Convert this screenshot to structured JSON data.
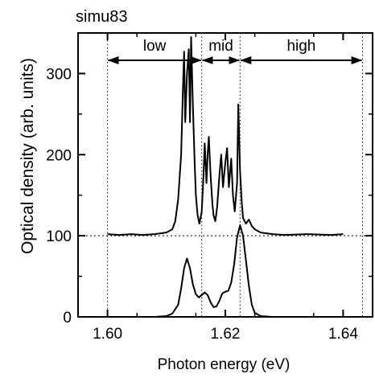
{
  "chart_data": {
    "type": "line",
    "title": "simu83",
    "xlabel": "Photon energy (eV)",
    "ylabel": "Optical density  (arb. units)",
    "xlim": [
      1.595,
      1.645
    ],
    "ylim": [
      0,
      350
    ],
    "x_ticks": [
      1.6,
      1.62,
      1.64
    ],
    "x_tick_labels": [
      "1.60",
      "1.62",
      "1.64"
    ],
    "y_ticks": [
      0,
      100,
      200,
      300
    ],
    "y_tick_labels": [
      "0",
      "100",
      "200",
      "300"
    ],
    "grid": false,
    "region_boundaries_ev": [
      1.6,
      1.616,
      1.6225,
      1.6433
    ],
    "baseline_reference_y": 100,
    "regions": [
      {
        "label": "low",
        "from": 1.6,
        "to": 1.616
      },
      {
        "label": "mid",
        "from": 1.616,
        "to": 1.6225
      },
      {
        "label": "high",
        "from": 1.6225,
        "to": 1.6433
      }
    ],
    "series": [
      {
        "x": [
          1.6,
          1.602,
          1.604,
          1.606,
          1.608,
          1.609,
          1.61,
          1.611,
          1.6115,
          1.612,
          1.6125,
          1.6128,
          1.613,
          1.6132,
          1.6135,
          1.6138,
          1.614,
          1.6142,
          1.6145,
          1.6148,
          1.615,
          1.6153,
          1.6156,
          1.616,
          1.6163,
          1.6165,
          1.6168,
          1.617,
          1.6172,
          1.6175,
          1.6178,
          1.618,
          1.6183,
          1.6186,
          1.619,
          1.6193,
          1.6196,
          1.62,
          1.6203,
          1.6206,
          1.621,
          1.6213,
          1.6216,
          1.622,
          1.6222,
          1.6225,
          1.6228,
          1.623,
          1.6235,
          1.624,
          1.6245,
          1.625,
          1.626,
          1.628,
          1.63,
          1.634,
          1.638,
          1.64
        ],
        "values": [
          102,
          101,
          102,
          101,
          102,
          103,
          104,
          108,
          118,
          145,
          200,
          280,
          327,
          240,
          300,
          330,
          240,
          345,
          260,
          190,
          150,
          125,
          115,
          130,
          175,
          214,
          165,
          200,
          222,
          175,
          140,
          125,
          118,
          135,
          175,
          200,
          160,
          190,
          208,
          160,
          195,
          150,
          130,
          165,
          262,
          180,
          140,
          122,
          115,
          120,
          112,
          108,
          104,
          102,
          101,
          102,
          101,
          102
        ]
      },
      {
        "x": [
          1.6,
          1.605,
          1.608,
          1.61,
          1.611,
          1.612,
          1.6125,
          1.613,
          1.6135,
          1.614,
          1.6145,
          1.615,
          1.6155,
          1.616,
          1.6165,
          1.617,
          1.6175,
          1.618,
          1.6185,
          1.619,
          1.6195,
          1.62,
          1.6205,
          1.621,
          1.6215,
          1.622,
          1.6225,
          1.623,
          1.6235,
          1.624,
          1.6245,
          1.625,
          1.626,
          1.628,
          1.63,
          1.635,
          1.64
        ],
        "values": [
          0,
          0,
          0,
          1,
          4,
          15,
          35,
          60,
          72,
          60,
          40,
          28,
          24,
          27,
          30,
          27,
          18,
          12,
          13,
          20,
          29,
          31,
          32,
          42,
          65,
          98,
          113,
          100,
          70,
          38,
          15,
          5,
          1,
          0,
          0,
          0,
          0
        ]
      }
    ]
  }
}
